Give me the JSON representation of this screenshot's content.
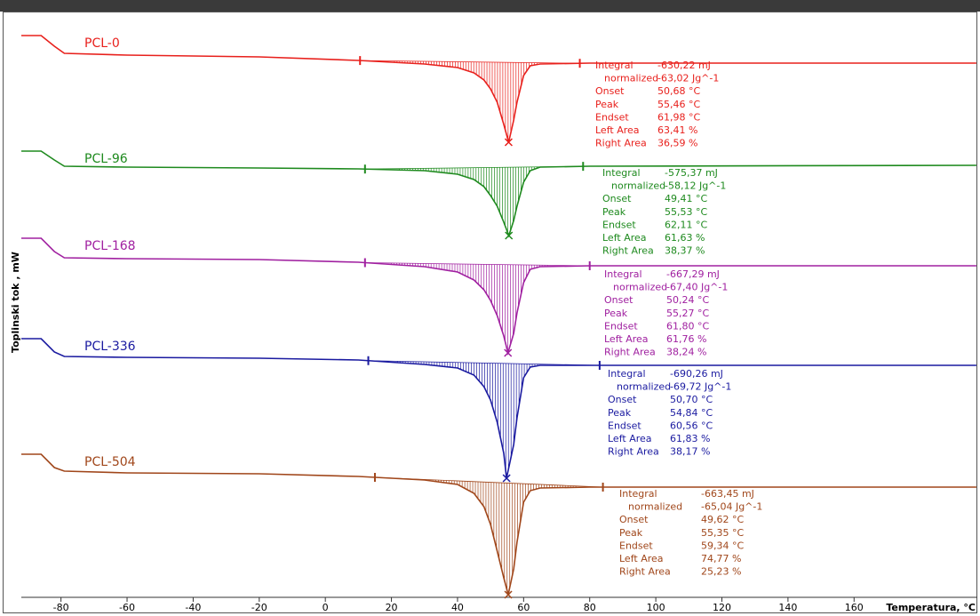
{
  "chart_data": {
    "type": "line",
    "x_label": "Temperatura, °C",
    "y_label": "Toplinski tok , mW",
    "xlim": [
      -92,
      197.3
    ],
    "ylim": [
      0,
      685
    ],
    "xticks": [
      -80,
      -60,
      -40,
      -20,
      0,
      20,
      40,
      60,
      80,
      100,
      120,
      140,
      160
    ],
    "series": [
      {
        "name": "PCL-0",
        "color": "#e8201c",
        "x": [
          -92,
          -86,
          -82,
          -79,
          -60,
          -20,
          10,
          30,
          40,
          45,
          48,
          50,
          52,
          54,
          55.46,
          57,
          58,
          60,
          62,
          65,
          80,
          197
        ],
        "values": [
          645,
          645,
          633,
          625,
          623,
          621,
          617,
          613,
          609,
          603,
          595,
          585,
          570,
          545,
          525,
          550,
          570,
          600,
          611,
          613,
          614,
          614
        ],
        "limits": [
          10.5,
          77
        ],
        "annotation": [
          {
            "label": "Integral",
            "text": "-630,22 mJ"
          },
          {
            "label": "normalized",
            "text": "-63,02 Jg^-1"
          },
          {
            "label": "Onset",
            "text": "50,68 °C"
          },
          {
            "label": "Peak",
            "text": "55,46 °C"
          },
          {
            "label": "Endset",
            "text": "61,98 °C"
          },
          {
            "label": "Left Area",
            "text": "63,41 %"
          },
          {
            "label": "Right Area",
            "text": "36,59 %"
          }
        ]
      },
      {
        "name": "PCL-96",
        "color": "#1e8a1e",
        "x": [
          -92,
          -86,
          -82,
          -79,
          -60,
          -20,
          10,
          30,
          40,
          45,
          48,
          50,
          52,
          54,
          55.53,
          57,
          58,
          60,
          62,
          65,
          80,
          197
        ],
        "values": [
          515,
          515,
          505,
          498,
          497,
          496,
          495,
          493,
          489,
          483,
          475,
          465,
          453,
          435,
          420,
          437,
          453,
          480,
          493,
          497,
          498,
          499
        ],
        "limits": [
          12,
          78
        ],
        "annotation": [
          {
            "label": "Integral",
            "text": "-575,37 mJ"
          },
          {
            "label": "normalized",
            "text": "-58,12 Jg^-1"
          },
          {
            "label": "Onset",
            "text": "49,41 °C"
          },
          {
            "label": "Peak",
            "text": "55,53 °C"
          },
          {
            "label": "Endset",
            "text": "62,11 °C"
          },
          {
            "label": "Left Area",
            "text": "61,63 %"
          },
          {
            "label": "Right Area",
            "text": "38,37 %"
          }
        ]
      },
      {
        "name": "PCL-168",
        "color": "#a020a0",
        "x": [
          -92,
          -86,
          -82,
          -79,
          -60,
          -20,
          10,
          30,
          40,
          45,
          48,
          50,
          52,
          54,
          55.27,
          57,
          58,
          60,
          62,
          65,
          80,
          197
        ],
        "values": [
          417,
          417,
          402,
          395,
          394,
          393,
          390,
          385,
          379,
          370,
          359,
          347,
          330,
          307,
          288,
          310,
          333,
          367,
          382,
          385,
          386,
          386
        ],
        "limits": [
          12,
          80
        ],
        "annotation": [
          {
            "label": "Integral",
            "text": "-667,29 mJ"
          },
          {
            "label": "normalized",
            "text": "-67,40 Jg^-1"
          },
          {
            "label": "Onset",
            "text": "50,24 °C"
          },
          {
            "label": "Peak",
            "text": "55,27 °C"
          },
          {
            "label": "Endset",
            "text": "61,80 °C"
          },
          {
            "label": "Left Area",
            "text": "61,76 %"
          },
          {
            "label": "Right Area",
            "text": "38,24 %"
          }
        ]
      },
      {
        "name": "PCL-336",
        "color": "#1a1aa0",
        "x": [
          -92,
          -86,
          -82,
          -79,
          -60,
          -20,
          10,
          30,
          40,
          45,
          48,
          50,
          52,
          54,
          54.84,
          57,
          58,
          60,
          62,
          65,
          80,
          197
        ],
        "values": [
          304,
          304,
          289,
          284,
          283,
          282,
          280,
          275,
          271,
          263,
          250,
          235,
          210,
          175,
          147,
          185,
          215,
          260,
          272,
          274,
          274,
          274
        ],
        "limits": [
          13,
          83
        ],
        "annotation": [
          {
            "label": "Integral",
            "text": "-690,26 mJ"
          },
          {
            "label": "normalized",
            "text": "-69,72 Jg^-1"
          },
          {
            "label": "Onset",
            "text": "50,70 °C"
          },
          {
            "label": "Peak",
            "text": "54,84 °C"
          },
          {
            "label": "Endset",
            "text": "60,56 °C"
          },
          {
            "label": "Left Area",
            "text": "61,83 %"
          },
          {
            "label": "Right Area",
            "text": "38,17 %"
          }
        ]
      },
      {
        "name": "PCL-504",
        "color": "#a0461a",
        "x": [
          -92,
          -86,
          -82,
          -79,
          -60,
          -20,
          10,
          30,
          40,
          45,
          48,
          50,
          52,
          54,
          55.35,
          57,
          58,
          60,
          62,
          65,
          80,
          197
        ],
        "values": [
          174,
          174,
          159,
          155,
          153,
          152,
          149,
          145,
          140,
          130,
          115,
          95,
          65,
          35,
          16,
          45,
          75,
          120,
          133,
          136,
          137,
          137
        ],
        "limits": [
          15,
          84
        ],
        "annotation": [
          {
            "label": "Integral",
            "text": "-663,45 mJ"
          },
          {
            "label": "normalized",
            "text": "-65,04 Jg^-1"
          },
          {
            "label": "Onset",
            "text": "49,62 °C"
          },
          {
            "label": "Peak",
            "text": "55,35 °C"
          },
          {
            "label": "Endset",
            "text": "59,34 °C"
          },
          {
            "label": "Left Area",
            "text": "74,77 %"
          },
          {
            "label": "Right Area",
            "text": "25,23 %"
          }
        ]
      }
    ]
  }
}
